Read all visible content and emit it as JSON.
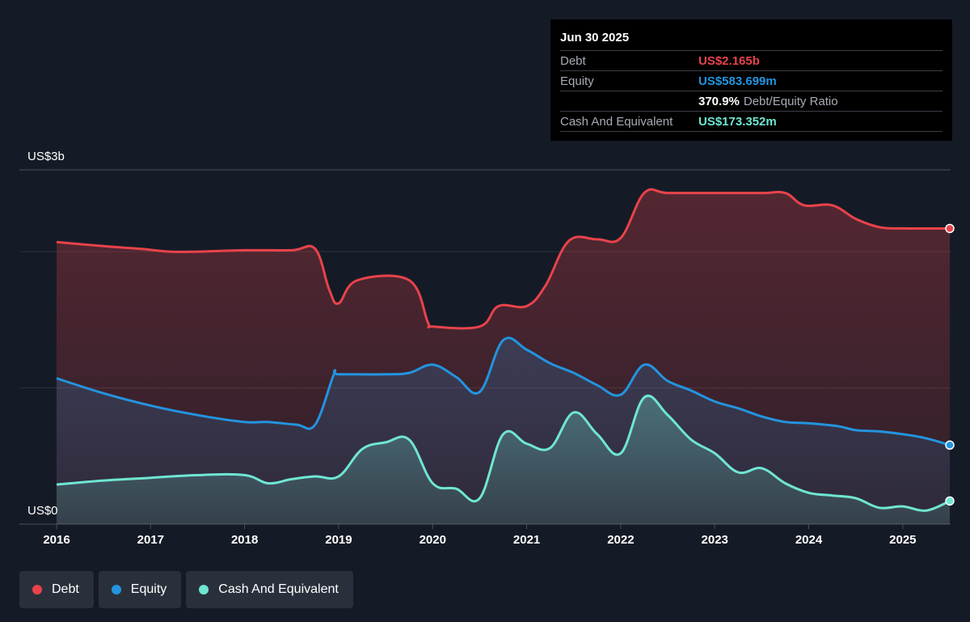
{
  "colors": {
    "debt": "#e8434b",
    "equity": "#2394df",
    "cash": "#6fe6d2",
    "background": "#151b26"
  },
  "tooltip": {
    "date": "Jun 30 2025",
    "rows": [
      {
        "label": "Debt",
        "value": "US$2.165b"
      },
      {
        "label": "Equity",
        "value": "US$583.699m"
      },
      {
        "ratio_value": "370.9%",
        "ratio_label": "Debt/Equity Ratio"
      },
      {
        "label": "Cash And Equivalent",
        "value": "US$173.352m"
      }
    ]
  },
  "legend": [
    {
      "label": "Debt",
      "color": "#e8434b"
    },
    {
      "label": "Equity",
      "color": "#2394df"
    },
    {
      "label": "Cash And Equivalent",
      "color": "#6fe6d2"
    }
  ],
  "chart_data": {
    "type": "area",
    "ylabel_top": "US$3b",
    "ylabel_bottom": "US$0",
    "ylim": [
      0,
      2.6
    ],
    "xlim": [
      2016,
      2025.5
    ],
    "x_ticks": [
      "2016",
      "2017",
      "2018",
      "2019",
      "2020",
      "2021",
      "2022",
      "2023",
      "2024",
      "2025"
    ],
    "grid": true,
    "series": [
      {
        "name": "Debt",
        "points": [
          [
            2016.0,
            2.07
          ],
          [
            2016.5,
            2.04
          ],
          [
            2016.9,
            2.02
          ],
          [
            2017.2,
            2.0
          ],
          [
            2017.5,
            2.0
          ],
          [
            2018.0,
            2.01
          ],
          [
            2018.5,
            2.01
          ],
          [
            2018.75,
            2.02
          ],
          [
            2018.9,
            1.72
          ],
          [
            2019.0,
            1.62
          ],
          [
            2019.2,
            1.79
          ],
          [
            2019.75,
            1.79
          ],
          [
            2019.95,
            1.48
          ],
          [
            2020.0,
            1.45
          ],
          [
            2020.5,
            1.45
          ],
          [
            2020.7,
            1.6
          ],
          [
            2021.0,
            1.6
          ],
          [
            2021.2,
            1.75
          ],
          [
            2021.45,
            2.08
          ],
          [
            2021.75,
            2.09
          ],
          [
            2022.0,
            2.1
          ],
          [
            2022.25,
            2.43
          ],
          [
            2022.5,
            2.43
          ],
          [
            2023.0,
            2.43
          ],
          [
            2023.5,
            2.43
          ],
          [
            2023.75,
            2.43
          ],
          [
            2023.95,
            2.34
          ],
          [
            2024.25,
            2.34
          ],
          [
            2024.5,
            2.24
          ],
          [
            2024.75,
            2.18
          ],
          [
            2025.0,
            2.17
          ],
          [
            2025.5,
            2.17
          ]
        ]
      },
      {
        "name": "Equity",
        "points": [
          [
            2016.0,
            1.07
          ],
          [
            2016.5,
            0.96
          ],
          [
            2017.0,
            0.87
          ],
          [
            2017.5,
            0.8
          ],
          [
            2018.0,
            0.75
          ],
          [
            2018.25,
            0.75
          ],
          [
            2018.55,
            0.73
          ],
          [
            2018.75,
            0.73
          ],
          [
            2018.95,
            1.1
          ],
          [
            2019.0,
            1.1
          ],
          [
            2019.5,
            1.1
          ],
          [
            2019.75,
            1.11
          ],
          [
            2020.0,
            1.17
          ],
          [
            2020.25,
            1.08
          ],
          [
            2020.5,
            0.97
          ],
          [
            2020.75,
            1.35
          ],
          [
            2021.0,
            1.28
          ],
          [
            2021.25,
            1.18
          ],
          [
            2021.5,
            1.11
          ],
          [
            2021.75,
            1.02
          ],
          [
            2022.0,
            0.95
          ],
          [
            2022.25,
            1.17
          ],
          [
            2022.5,
            1.05
          ],
          [
            2022.75,
            0.98
          ],
          [
            2023.0,
            0.9
          ],
          [
            2023.25,
            0.85
          ],
          [
            2023.5,
            0.79
          ],
          [
            2023.75,
            0.75
          ],
          [
            2024.0,
            0.74
          ],
          [
            2024.3,
            0.72
          ],
          [
            2024.5,
            0.69
          ],
          [
            2024.75,
            0.68
          ],
          [
            2025.0,
            0.66
          ],
          [
            2025.25,
            0.63
          ],
          [
            2025.5,
            0.58
          ]
        ]
      },
      {
        "name": "Cash And Equivalent",
        "points": [
          [
            2016.0,
            0.29
          ],
          [
            2016.5,
            0.32
          ],
          [
            2017.0,
            0.34
          ],
          [
            2017.5,
            0.36
          ],
          [
            2018.0,
            0.36
          ],
          [
            2018.25,
            0.3
          ],
          [
            2018.5,
            0.33
          ],
          [
            2018.75,
            0.35
          ],
          [
            2019.0,
            0.35
          ],
          [
            2019.25,
            0.55
          ],
          [
            2019.5,
            0.6
          ],
          [
            2019.75,
            0.62
          ],
          [
            2020.0,
            0.3
          ],
          [
            2020.25,
            0.26
          ],
          [
            2020.5,
            0.19
          ],
          [
            2020.75,
            0.66
          ],
          [
            2021.0,
            0.59
          ],
          [
            2021.25,
            0.56
          ],
          [
            2021.5,
            0.82
          ],
          [
            2021.75,
            0.66
          ],
          [
            2022.0,
            0.52
          ],
          [
            2022.25,
            0.93
          ],
          [
            2022.5,
            0.8
          ],
          [
            2022.75,
            0.62
          ],
          [
            2023.0,
            0.52
          ],
          [
            2023.25,
            0.38
          ],
          [
            2023.5,
            0.41
          ],
          [
            2023.75,
            0.3
          ],
          [
            2024.0,
            0.23
          ],
          [
            2024.25,
            0.21
          ],
          [
            2024.5,
            0.19
          ],
          [
            2024.75,
            0.12
          ],
          [
            2025.0,
            0.13
          ],
          [
            2025.25,
            0.1
          ],
          [
            2025.5,
            0.17
          ]
        ]
      }
    ]
  }
}
